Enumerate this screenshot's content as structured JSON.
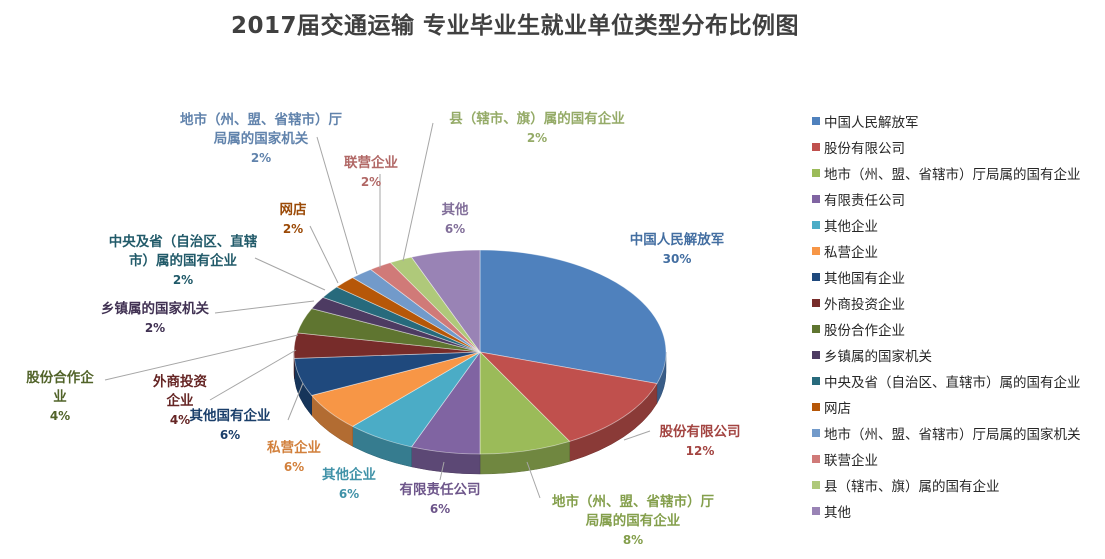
{
  "chart_data": {
    "type": "pie",
    "title": "2017届交通运输 专业毕业生就业单位类型分布比例图",
    "legend_position": "right",
    "slices": [
      {
        "label": "中国人民解放军",
        "value": 30,
        "display": "30%",
        "color": "#4F81BD",
        "label_lines": [
          "中国人民解放军"
        ]
      },
      {
        "label": "股份有限公司",
        "value": 12,
        "display": "12%",
        "color": "#C0504D",
        "label_lines": [
          "股份有限公司"
        ]
      },
      {
        "label": "地市（州、盟、省辖市）厅局属的国有企业",
        "value": 8,
        "display": "8%",
        "color": "#9BBB59",
        "label_lines": [
          "地市（州、盟、省辖市）厅",
          "局属的国有企业"
        ]
      },
      {
        "label": "有限责任公司",
        "value": 6,
        "display": "6%",
        "color": "#8064A2",
        "label_lines": [
          "有限责任公司"
        ]
      },
      {
        "label": "其他企业",
        "value": 6,
        "display": "6%",
        "color": "#4BACC6",
        "label_lines": [
          "其他企业"
        ]
      },
      {
        "label": "私营企业",
        "value": 6,
        "display": "6%",
        "color": "#F79646",
        "label_lines": [
          "私营企业"
        ]
      },
      {
        "label": "其他国有企业",
        "value": 6,
        "display": "6%",
        "color": "#1F497D",
        "label_lines": [
          "其他国有企业"
        ]
      },
      {
        "label": "外商投资企业",
        "value": 4,
        "display": "4%",
        "color": "#772C2A",
        "label_lines": [
          "外商投资",
          "企业"
        ]
      },
      {
        "label": "股份合作企业",
        "value": 4,
        "display": "4%",
        "color": "#5F7530",
        "label_lines": [
          "股份合作企",
          "业"
        ]
      },
      {
        "label": "乡镇属的国家机关",
        "value": 2,
        "display": "2%",
        "color": "#4D3B62",
        "label_lines": [
          "乡镇属的国家机关"
        ]
      },
      {
        "label": "中央及省（自治区、直辖市）属的国有企业",
        "value": 2,
        "display": "2%",
        "color": "#276A7C",
        "label_lines": [
          "中央及省（自治区、直辖",
          "市）属的国有企业"
        ]
      },
      {
        "label": "网店",
        "value": 2,
        "display": "2%",
        "color": "#B65708",
        "label_lines": [
          "网店"
        ]
      },
      {
        "label": "地市（州、盟、省辖市）厅局属的国家机关",
        "value": 2,
        "display": "2%",
        "color": "#729ACA",
        "label_lines": [
          "地市（州、盟、省辖市）厅",
          "局属的国家机关"
        ]
      },
      {
        "label": "联营企业",
        "value": 2,
        "display": "2%",
        "color": "#D07A78",
        "label_lines": [
          "联营企业"
        ]
      },
      {
        "label": "县（辖市、旗）属的国有企业",
        "value": 2,
        "display": "2%",
        "color": "#AFC97A",
        "label_lines": [
          "县（辖市、旗）属的国有企业"
        ]
      },
      {
        "label": "其他",
        "value": 6,
        "display": "6%",
        "color": "#9983B5",
        "label_lines": [
          "其他"
        ]
      }
    ]
  }
}
